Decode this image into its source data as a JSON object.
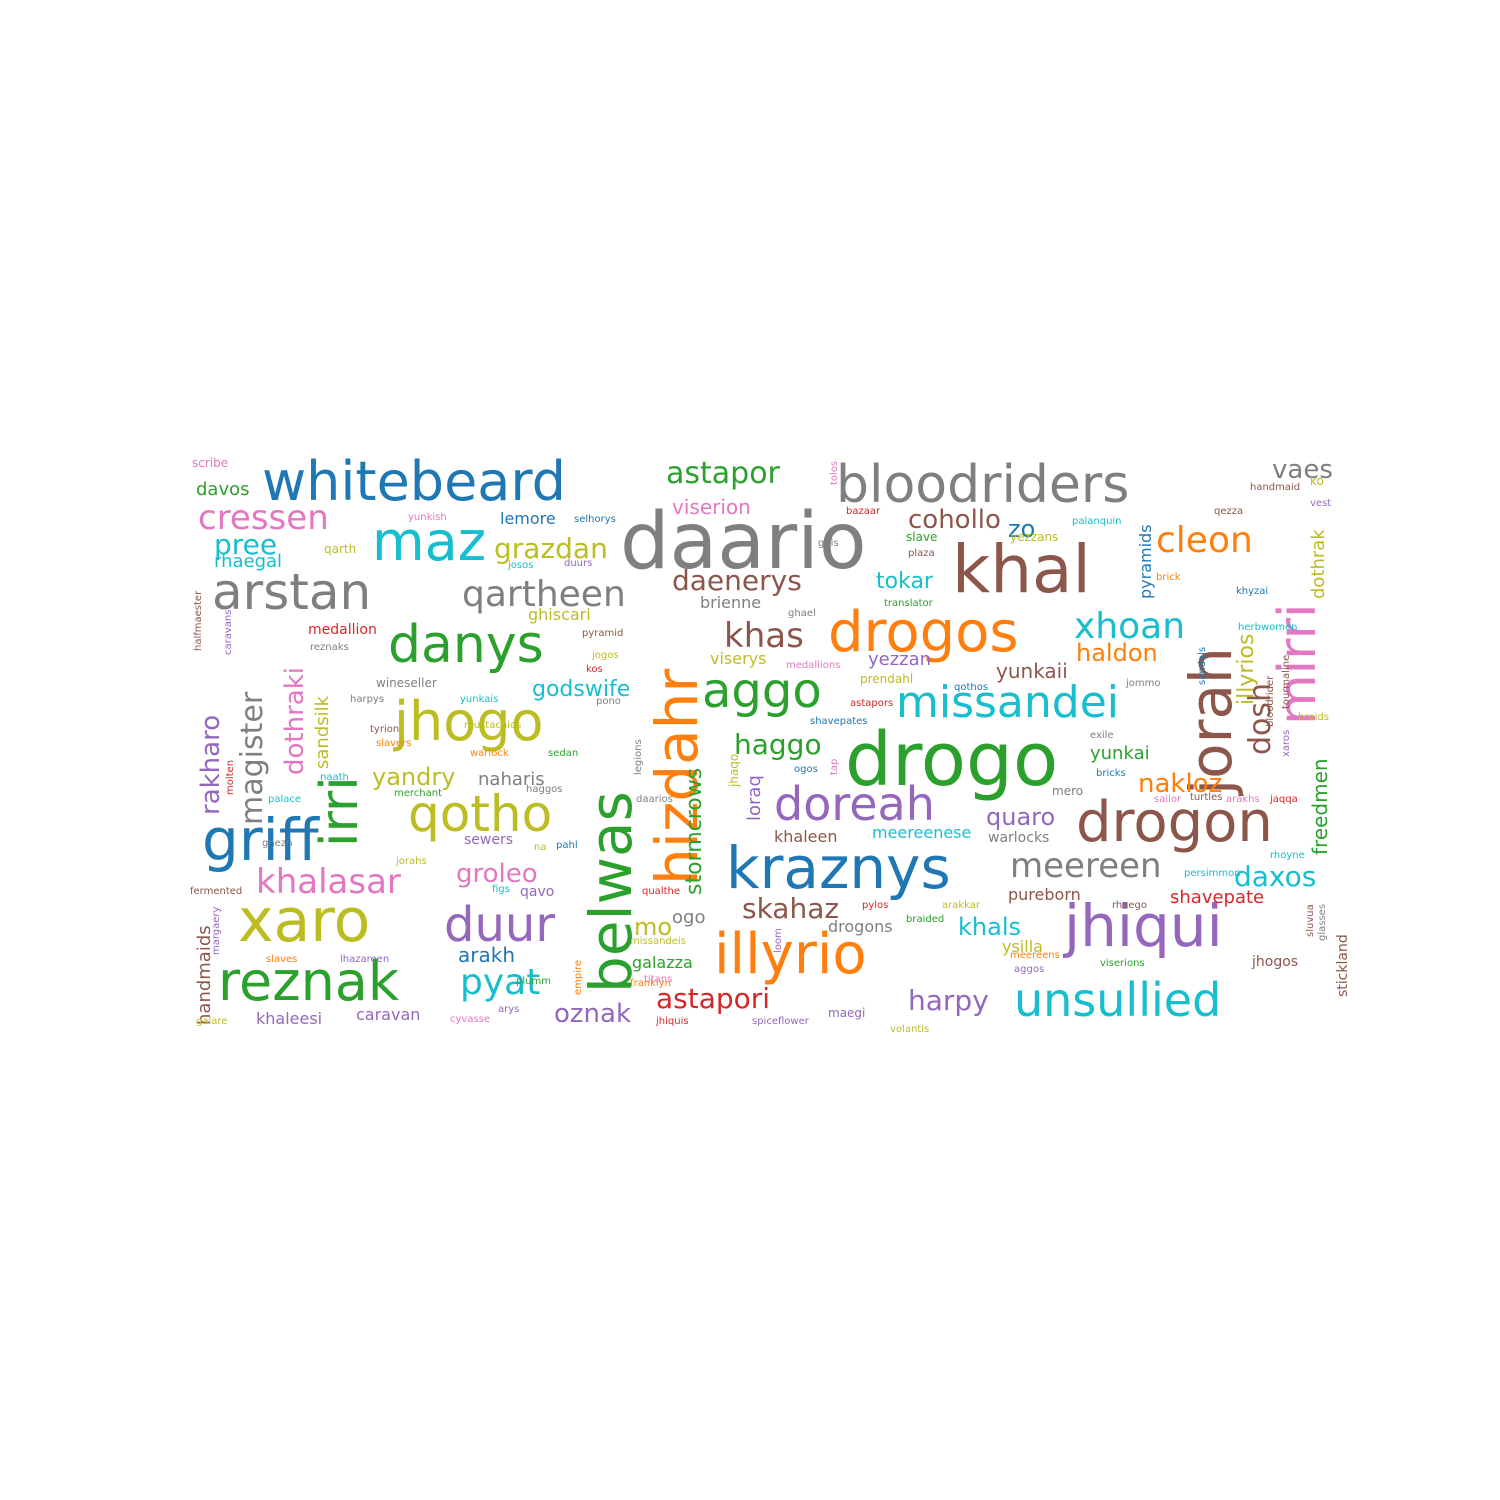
{
  "palette": {
    "blue": "#1f77b4",
    "orange": "#ff7f0e",
    "green": "#2ca02c",
    "red": "#d62728",
    "purple": "#9467bd",
    "brown": "#8c564b",
    "pink": "#e377c2",
    "gray": "#7f7f7f",
    "olive": "#bcbd22",
    "cyan": "#17becf"
  },
  "words": [
    {
      "text": "daario",
      "color": "gray"
    },
    {
      "text": "drogo",
      "color": "green"
    },
    {
      "text": "belwas",
      "color": "green"
    },
    {
      "text": "hizdahr",
      "color": "orange"
    },
    {
      "text": "jorah",
      "color": "brown"
    },
    {
      "text": "khal",
      "color": "brown"
    },
    {
      "text": "kraznys",
      "color": "blue"
    },
    {
      "text": "jhiqui",
      "color": "purple"
    },
    {
      "text": "drogon",
      "color": "brown"
    },
    {
      "text": "drogos",
      "color": "orange"
    },
    {
      "text": "illyrio",
      "color": "orange"
    },
    {
      "text": "griff",
      "color": "blue"
    },
    {
      "text": "xaro",
      "color": "olive"
    },
    {
      "text": "reznak",
      "color": "green"
    },
    {
      "text": "whitebeard",
      "color": "blue"
    },
    {
      "text": "bloodriders",
      "color": "gray"
    },
    {
      "text": "arstan",
      "color": "gray"
    },
    {
      "text": "danys",
      "color": "green"
    },
    {
      "text": "jhogo",
      "color": "olive"
    },
    {
      "text": "irri",
      "color": "green"
    },
    {
      "text": "mirri",
      "color": "pink"
    },
    {
      "text": "maz",
      "color": "cyan"
    },
    {
      "text": "qotho",
      "color": "olive"
    },
    {
      "text": "missandei",
      "color": "cyan"
    },
    {
      "text": "doreah",
      "color": "purple"
    },
    {
      "text": "unsullied",
      "color": "cyan"
    },
    {
      "text": "aggo",
      "color": "green"
    },
    {
      "text": "duur",
      "color": "purple"
    },
    {
      "text": "qartheen",
      "color": "gray"
    },
    {
      "text": "magister",
      "color": "gray"
    },
    {
      "text": "khalasar",
      "color": "pink"
    },
    {
      "text": "meereen",
      "color": "gray"
    },
    {
      "text": "xhoan",
      "color": "cyan"
    },
    {
      "text": "cleon",
      "color": "orange"
    },
    {
      "text": "cressen",
      "color": "pink"
    },
    {
      "text": "astapor",
      "color": "green"
    },
    {
      "text": "pyat",
      "color": "cyan"
    },
    {
      "text": "khas",
      "color": "brown"
    },
    {
      "text": "daenerys",
      "color": "brown"
    },
    {
      "text": "skahaz",
      "color": "brown"
    },
    {
      "text": "grazdan",
      "color": "olive"
    },
    {
      "text": "cohollo",
      "color": "brown"
    },
    {
      "text": "rakharo",
      "color": "purple"
    },
    {
      "text": "dothraki",
      "color": "pink"
    },
    {
      "text": "haggo",
      "color": "green"
    },
    {
      "text": "astapori",
      "color": "red"
    },
    {
      "text": "oznak",
      "color": "purple"
    },
    {
      "text": "harpy",
      "color": "purple"
    },
    {
      "text": "daxos",
      "color": "cyan"
    },
    {
      "text": "nakloz",
      "color": "orange"
    },
    {
      "text": "dosh",
      "color": "brown"
    },
    {
      "text": "vaes",
      "color": "gray"
    },
    {
      "text": "pree",
      "color": "cyan"
    },
    {
      "text": "stormcrows",
      "color": "green"
    },
    {
      "text": "groleo",
      "color": "pink"
    },
    {
      "text": "yandry",
      "color": "olive"
    },
    {
      "text": "khals",
      "color": "cyan"
    },
    {
      "text": "haldon",
      "color": "orange"
    },
    {
      "text": "illyrios",
      "color": "olive"
    },
    {
      "text": "quaro",
      "color": "purple"
    },
    {
      "text": "zo",
      "color": "blue"
    },
    {
      "text": "tokar",
      "color": "cyan"
    },
    {
      "text": "viserion",
      "color": "pink"
    },
    {
      "text": "mo",
      "color": "olive"
    },
    {
      "text": "yunkaii",
      "color": "brown"
    },
    {
      "text": "freedmen",
      "color": "green"
    },
    {
      "text": "godswife",
      "color": "cyan"
    },
    {
      "text": "arakh",
      "color": "blue"
    },
    {
      "text": "davos",
      "color": "green"
    },
    {
      "text": "rhaegal",
      "color": "cyan"
    },
    {
      "text": "sandsilk",
      "color": "olive"
    },
    {
      "text": "khaleesi",
      "color": "purple"
    },
    {
      "text": "caravan",
      "color": "purple"
    },
    {
      "text": "handmaids",
      "color": "brown"
    },
    {
      "text": "naharis",
      "color": "gray"
    },
    {
      "text": "lemore",
      "color": "blue"
    },
    {
      "text": "brienne",
      "color": "gray"
    },
    {
      "text": "viserys",
      "color": "olive"
    },
    {
      "text": "yezzan",
      "color": "purple"
    },
    {
      "text": "yunkai",
      "color": "green"
    },
    {
      "text": "loraq",
      "color": "purple"
    },
    {
      "text": "khaleen",
      "color": "brown"
    },
    {
      "text": "meereenese",
      "color": "cyan"
    },
    {
      "text": "pyramids",
      "color": "blue"
    },
    {
      "text": "dothrak",
      "color": "olive"
    },
    {
      "text": "shavepate",
      "color": "red"
    },
    {
      "text": "pureborn",
      "color": "brown"
    },
    {
      "text": "ogo",
      "color": "gray"
    },
    {
      "text": "galazza",
      "color": "green"
    },
    {
      "text": "ysilla",
      "color": "olive"
    },
    {
      "text": "drogons",
      "color": "gray"
    },
    {
      "text": "ghiscari",
      "color": "olive"
    },
    {
      "text": "medallion",
      "color": "red"
    },
    {
      "text": "sewers",
      "color": "purple"
    },
    {
      "text": "qavo",
      "color": "purple"
    },
    {
      "text": "warlocks",
      "color": "gray"
    },
    {
      "text": "stickland",
      "color": "brown"
    },
    {
      "text": "jhogos",
      "color": "brown"
    },
    {
      "text": "scribe",
      "color": "pink"
    },
    {
      "text": "yunkish",
      "color": "pink"
    },
    {
      "text": "selhorys",
      "color": "blue"
    },
    {
      "text": "qarth",
      "color": "olive"
    },
    {
      "text": "josos",
      "color": "cyan"
    },
    {
      "text": "duurs",
      "color": "purple"
    },
    {
      "text": "halfmaester",
      "color": "brown"
    },
    {
      "text": "caravans",
      "color": "purple"
    },
    {
      "text": "reznaks",
      "color": "gray"
    },
    {
      "text": "wineseller",
      "color": "gray"
    },
    {
      "text": "harpys",
      "color": "gray"
    },
    {
      "text": "yunkais",
      "color": "cyan"
    },
    {
      "text": "pono",
      "color": "gray"
    },
    {
      "text": "tyrion",
      "color": "brown"
    },
    {
      "text": "slavers",
      "color": "orange"
    },
    {
      "text": "warlock",
      "color": "orange"
    },
    {
      "text": "sedan",
      "color": "green"
    },
    {
      "text": "molten",
      "color": "red"
    },
    {
      "text": "naath",
      "color": "cyan"
    },
    {
      "text": "merchant",
      "color": "green"
    },
    {
      "text": "haggos",
      "color": "gray"
    },
    {
      "text": "palace",
      "color": "cyan"
    },
    {
      "text": "ghezn",
      "color": "gray"
    },
    {
      "text": "jorahs",
      "color": "olive"
    },
    {
      "text": "na",
      "color": "olive"
    },
    {
      "text": "pahl",
      "color": "blue"
    },
    {
      "text": "fermented",
      "color": "brown"
    },
    {
      "text": "figs",
      "color": "cyan"
    },
    {
      "text": "margaery",
      "color": "purple"
    },
    {
      "text": "slaves",
      "color": "orange"
    },
    {
      "text": "lhazareen",
      "color": "purple"
    },
    {
      "text": "plumm",
      "color": "green"
    },
    {
      "text": "galare",
      "color": "olive"
    },
    {
      "text": "cyvasse",
      "color": "pink"
    },
    {
      "text": "arys",
      "color": "purple"
    },
    {
      "text": "mustachios",
      "color": "olive"
    },
    {
      "text": "pyramid",
      "color": "brown"
    },
    {
      "text": "jogos",
      "color": "olive"
    },
    {
      "text": "kos",
      "color": "red"
    },
    {
      "text": "legions",
      "color": "gray"
    },
    {
      "text": "daarios",
      "color": "gray"
    },
    {
      "text": "jhaqo",
      "color": "olive"
    },
    {
      "text": "empire",
      "color": "orange"
    },
    {
      "text": "qualthe",
      "color": "red"
    },
    {
      "text": "titans",
      "color": "pink"
    },
    {
      "text": "franklyn",
      "color": "orange"
    },
    {
      "text": "jhiquis",
      "color": "red"
    },
    {
      "text": "missandeis",
      "color": "olive"
    },
    {
      "text": "loom",
      "color": "purple"
    },
    {
      "text": "spiceflower",
      "color": "purple"
    },
    {
      "text": "maegi",
      "color": "purple"
    },
    {
      "text": "volantis",
      "color": "olive"
    },
    {
      "text": "tap",
      "color": "pink"
    },
    {
      "text": "ogos",
      "color": "blue"
    },
    {
      "text": "bazaar",
      "color": "red"
    },
    {
      "text": "tolos",
      "color": "pink"
    },
    {
      "text": "plaza",
      "color": "brown"
    },
    {
      "text": "ghis",
      "color": "gray"
    },
    {
      "text": "ghael",
      "color": "gray"
    },
    {
      "text": "translator",
      "color": "green"
    },
    {
      "text": "medallions",
      "color": "pink"
    },
    {
      "text": "prendahl",
      "color": "olive"
    },
    {
      "text": "shavepates",
      "color": "blue"
    },
    {
      "text": "astapors",
      "color": "red"
    },
    {
      "text": "qothos",
      "color": "blue"
    },
    {
      "text": "exile",
      "color": "gray"
    },
    {
      "text": "bricks",
      "color": "blue"
    },
    {
      "text": "mero",
      "color": "gray"
    },
    {
      "text": "jommo",
      "color": "gray"
    },
    {
      "text": "yezzans",
      "color": "olive"
    },
    {
      "text": "slave",
      "color": "green"
    },
    {
      "text": "handmaid",
      "color": "brown"
    },
    {
      "text": "ko",
      "color": "olive"
    },
    {
      "text": "qezza",
      "color": "brown"
    },
    {
      "text": "vest",
      "color": "purple"
    },
    {
      "text": "palanquin",
      "color": "cyan"
    },
    {
      "text": "brick",
      "color": "orange"
    },
    {
      "text": "khyzai",
      "color": "blue"
    },
    {
      "text": "herbwomen",
      "color": "cyan"
    },
    {
      "text": "tourmaline",
      "color": "brown"
    },
    {
      "text": "bloodrider",
      "color": "brown"
    },
    {
      "text": "braids",
      "color": "olive"
    },
    {
      "text": "xaros",
      "color": "purple"
    },
    {
      "text": "sailor",
      "color": "pink"
    },
    {
      "text": "turtles",
      "color": "brown"
    },
    {
      "text": "arakhs",
      "color": "pink"
    },
    {
      "text": "jaqqa",
      "color": "red"
    },
    {
      "text": "rhoyne",
      "color": "cyan"
    },
    {
      "text": "persimmon",
      "color": "cyan"
    },
    {
      "text": "arakkar",
      "color": "olive"
    },
    {
      "text": "rhaego",
      "color": "brown"
    },
    {
      "text": "pylos",
      "color": "red"
    },
    {
      "text": "braided",
      "color": "green"
    },
    {
      "text": "meereens",
      "color": "orange"
    },
    {
      "text": "aggos",
      "color": "purple"
    },
    {
      "text": "viserions",
      "color": "green"
    },
    {
      "text": "sluvua",
      "color": "brown"
    },
    {
      "text": "glasses",
      "color": "gray"
    },
    {
      "text": "sandals",
      "color": "blue"
    }
  ]
}
